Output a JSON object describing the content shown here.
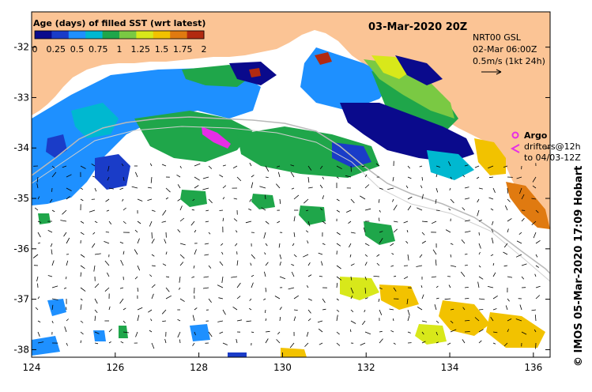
{
  "map": {
    "date_title": "03-Mar-2020 20Z",
    "colorbar_title": "Age (days) of filled SST (wrt latest)",
    "colorbar_ticks": [
      "0",
      "0.25",
      "0.5",
      "0.75",
      "1",
      "1.25",
      "1.5",
      "1.75",
      "2"
    ],
    "colorbar_colors": [
      "#0a0a8c",
      "#1a3cc8",
      "#1e90ff",
      "#00b8d0",
      "#1fa64a",
      "#7ac943",
      "#d8e81a",
      "#f2c200",
      "#e07a10",
      "#b22a10"
    ],
    "product_lines": [
      "NRT00 GSL",
      "02-Mar 06:00Z",
      "0.5m/s (1kt 24h)"
    ],
    "legend": {
      "argo_label": "Argo",
      "drifters_line1": "drifters@12h",
      "drifters_line2": "to 04/03-12Z",
      "argo_color": "#e62ee6"
    },
    "credit": "© IMOS 05-Mar-2020 17:09 Hobart",
    "x_ticks": [
      "124",
      "126",
      "128",
      "130",
      "132",
      "134",
      "136"
    ],
    "y_ticks": [
      "-32",
      "-33",
      "-34",
      "-35",
      "-36",
      "-37",
      "-38"
    ],
    "land_color": "#fbc495",
    "ocean_color": "#ffffff"
  }
}
